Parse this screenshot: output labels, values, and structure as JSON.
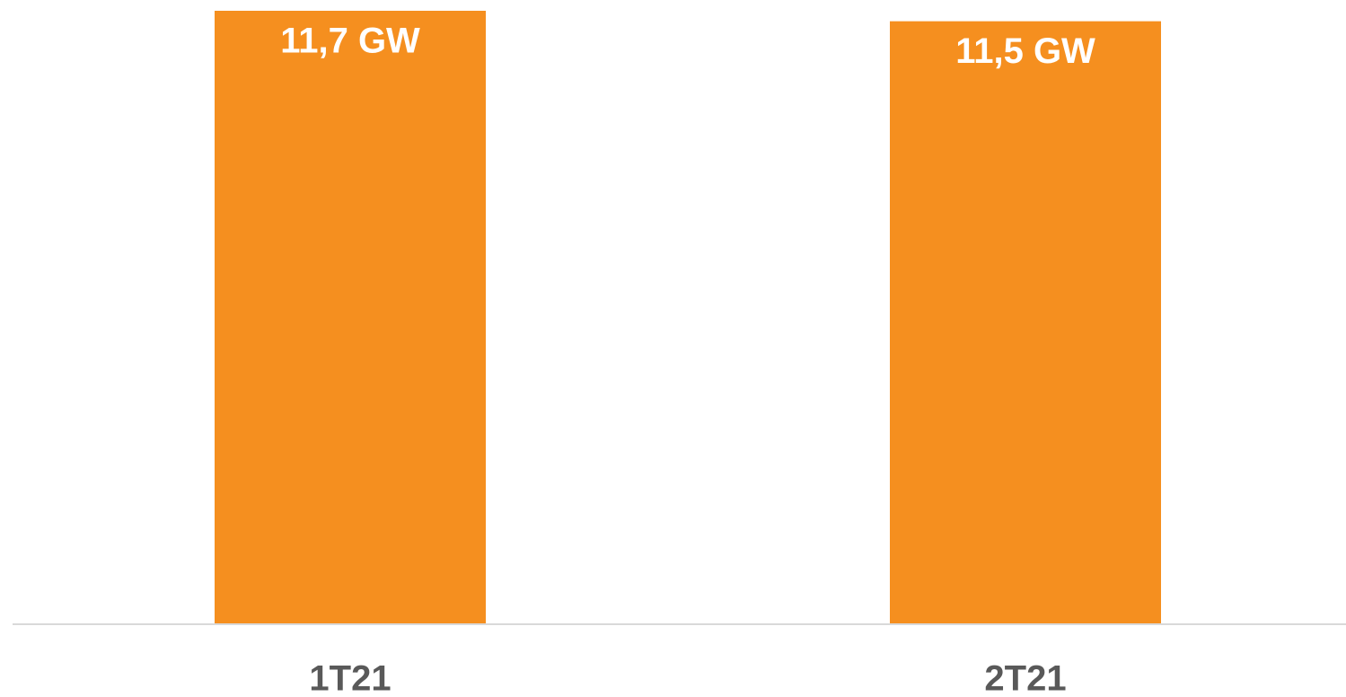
{
  "chart_data": {
    "type": "bar",
    "categories": [
      "1T21",
      "2T21"
    ],
    "values": [
      11.7,
      11.5
    ],
    "value_labels": [
      "11,7 GW",
      "11,5 GW"
    ],
    "color": "#f58f1f"
  }
}
